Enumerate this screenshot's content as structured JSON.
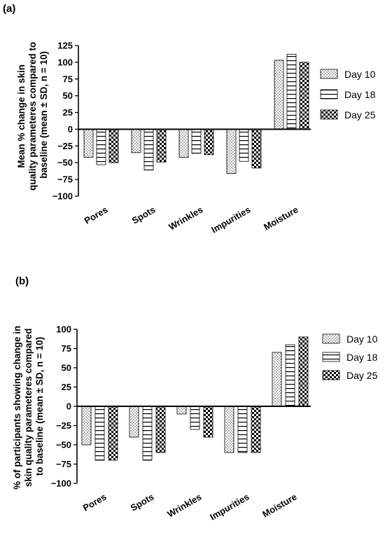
{
  "chart_data": [
    {
      "panel_label": "(a)",
      "type": "bar",
      "ylabel_lines": [
        "Mean % change in skin",
        "quality parameteres compared to",
        "baseline (mean ± SD, n = 10)"
      ],
      "ylim": [
        -100,
        125
      ],
      "yticks": [
        125,
        100,
        75,
        50,
        25,
        0,
        -25,
        -50,
        -75,
        -100
      ],
      "ytick_labels": [
        "125",
        "100",
        "75",
        "50",
        "25",
        "0",
        "−25",
        "−50",
        "−75",
        "−100"
      ],
      "categories": [
        "Pores",
        "Spots",
        "Wrinkles",
        "Impurities",
        "Moisture"
      ],
      "series": [
        {
          "name": "Day 10",
          "pattern": "dots",
          "values": [
            -42,
            -35,
            -42,
            -66,
            103
          ]
        },
        {
          "name": "Day 18",
          "pattern": "hlines",
          "values": [
            -53,
            -61,
            -36,
            -48,
            112
          ]
        },
        {
          "name": "Day 25",
          "pattern": "checker",
          "values": [
            -50,
            -49,
            -38,
            -58,
            100
          ]
        }
      ],
      "legend_position": "right"
    },
    {
      "panel_label": "(b)",
      "type": "bar",
      "ylabel_lines": [
        "% of participants showing change in",
        "skin quality parameteres compared",
        "to baseline (mean ± SD, n = 10)"
      ],
      "ylim": [
        -100,
        100
      ],
      "yticks": [
        100,
        75,
        50,
        25,
        0,
        -25,
        -50,
        -75,
        -100
      ],
      "ytick_labels": [
        "100",
        "75",
        "50",
        "25",
        "0",
        "−25",
        "−50",
        "−75",
        "−100"
      ],
      "categories": [
        "Pores",
        "Spots",
        "Wrinkles",
        "Impurities",
        "Moisture"
      ],
      "series": [
        {
          "name": "Day 10",
          "pattern": "dots",
          "values": [
            -50,
            -40,
            -10,
            -60,
            70
          ]
        },
        {
          "name": "Day 18",
          "pattern": "hlines",
          "values": [
            -70,
            -70,
            -30,
            -60,
            80
          ]
        },
        {
          "name": "Day 25",
          "pattern": "checker",
          "values": [
            -70,
            -60,
            -40,
            -60,
            90
          ]
        }
      ],
      "legend_position": "right"
    }
  ]
}
